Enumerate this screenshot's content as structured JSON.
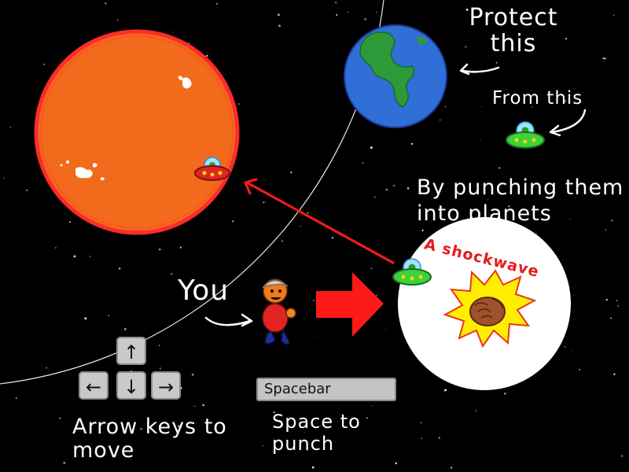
{
  "instructions": {
    "protect": "Protect this",
    "from": "From this",
    "by": "By punching them into planets",
    "you": "You",
    "arrow_keys": "Arrow keys to move",
    "space": "Space to punch",
    "shockwave": "A shockwave"
  },
  "keys": {
    "up": "↑",
    "left": "←",
    "down": "↓",
    "right": "→",
    "spacebar": "Spacebar"
  },
  "colors": {
    "space": "#000000",
    "sun": "#f26a1b",
    "sun_rim": "#ff2a2a",
    "earth_ocean": "#2f6fd6",
    "earth_land": "#2e9b3a",
    "ufo_green": "#3ed13e",
    "ufo_red": "#e02424",
    "shockwave": "#ffffff",
    "punch_arrow": "#ff1a1a"
  }
}
